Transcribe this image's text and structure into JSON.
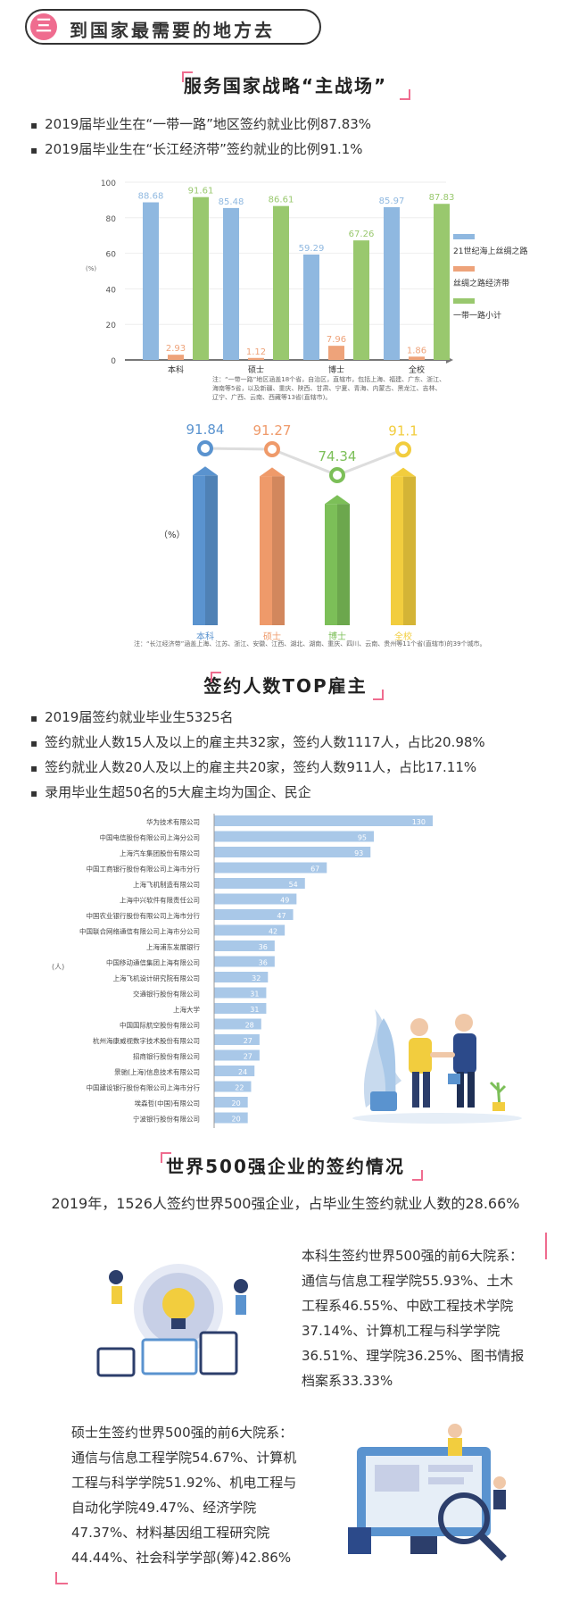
{
  "banner": {
    "num": "三",
    "title": "到国家最需要的地方去"
  },
  "sec1": {
    "title": "服务国家战略“主战场”",
    "b1": "2019届毕业生在“一带一路”地区签约就业比例87.83%",
    "b2": "2019届毕业生在“长江经济带”签约就业的比例91.1%"
  },
  "chart1": {
    "unit": "(%)",
    "note": "注：“一带一路”地区涵盖18个省，自治区，直辖市，包括上海、福建、广东、浙江、海南等5省，以及新疆、重庆、陕西、甘肃、宁夏、青海、内蒙古、黑龙江、吉林、辽宁、广西、云南、西藏等13省(直辖市)。"
  },
  "chart2": {
    "unit": "（%）",
    "note": "注：“长江经济带”涵盖上海、江苏、浙江、安徽、江西、湖北、湖南、重庆、四川、云南、贵州等11个省(直辖市)的39个城市。"
  },
  "sec2": {
    "title": "签约人数TOP雇主",
    "b1": "2019届签约就业毕业生5325名",
    "b2": "签约就业人数15人及以上的雇主共32家，签约人数1117人，占比20.98%",
    "b3": "签约就业人数20人及以上的雇主共20家，签约人数911人，占比17.11%",
    "b4": "录用毕业生超50名的5大雇主均为国企、民企",
    "unit": "(人)"
  },
  "sec3": {
    "title": "世界500强企业的签约情况",
    "summary": "2019年，1526人签约世界500强企业，占毕业生签约就业人数的28.66%",
    "undergrad": "本科生签约世界500强的前6大院系：通信与信息工程学院55.93%、土木工程系46.55%、中欧工程技术学院37.14%、计算机工程与科学学院36.51%、理学院36.25%、图书情报档案系33.33%",
    "master": "硕士生签约世界500强的前6大院系：通信与信息工程学院54.67%、计算机工程与科学学院51.92%、机电工程与自动化学院49.47%、经济学院47.37%、材料基因组工程研究院44.44%、社会科学学部(筹)42.86%"
  },
  "chart_data": [
    {
      "type": "bar",
      "categories": [
        "本科",
        "硕士",
        "博士",
        "全校"
      ],
      "series": [
        {
          "name": "21世纪海上丝绸之路",
          "values": [
            88.68,
            85.48,
            59.29,
            85.97
          ],
          "color": "#8fb8e0"
        },
        {
          "name": "丝绸之路经济带",
          "values": [
            2.93,
            1.12,
            7.96,
            1.86
          ],
          "color": "#eea37a"
        },
        {
          "name": "一带一路小计",
          "values": [
            91.61,
            86.61,
            67.26,
            87.83
          ],
          "color": "#99c86e"
        }
      ],
      "yticks": [
        0,
        20,
        40,
        60,
        80,
        100
      ],
      "ylim": [
        0,
        100
      ]
    },
    {
      "type": "bar",
      "categories": [
        "本科",
        "硕士",
        "博士",
        "全校"
      ],
      "values": [
        91.84,
        91.27,
        74.34,
        91.1
      ],
      "colors": [
        "#5a93cf",
        "#ef9a6a",
        "#7cbf58",
        "#f2cd3e"
      ]
    },
    {
      "type": "bar",
      "orientation": "horizontal",
      "categories": [
        "华为技术有限公司",
        "中国电信股份有限公司上海分公司",
        "上海汽车集团股份有限公司",
        "中国工商银行股份有限公司上海市分行",
        "上海飞机制造有限公司",
        "上海中兴软件有限责任公司",
        "中国农业银行股份有限公司上海市分行",
        "中国联合网络通信有限公司上海市分公司",
        "上海浦东发展银行",
        "中国移动通信集团上海有限公司",
        "上海飞机设计研究院有限公司",
        "交通银行股份有限公司",
        "上海大学",
        "中国国际航空股份有限公司",
        "杭州海康威视数字技术股份有限公司",
        "招商银行股份有限公司",
        "景驰(上海)信息技术有限公司",
        "中国建设银行股份有限公司上海市分行",
        "埃森哲(中国)有限公司",
        "宁波银行股份有限公司"
      ],
      "values": [
        130,
        95,
        93,
        67,
        54,
        49,
        47,
        42,
        36,
        36,
        32,
        31,
        31,
        28,
        27,
        27,
        24,
        22,
        20,
        20
      ],
      "color": "#a9c8e8"
    }
  ]
}
